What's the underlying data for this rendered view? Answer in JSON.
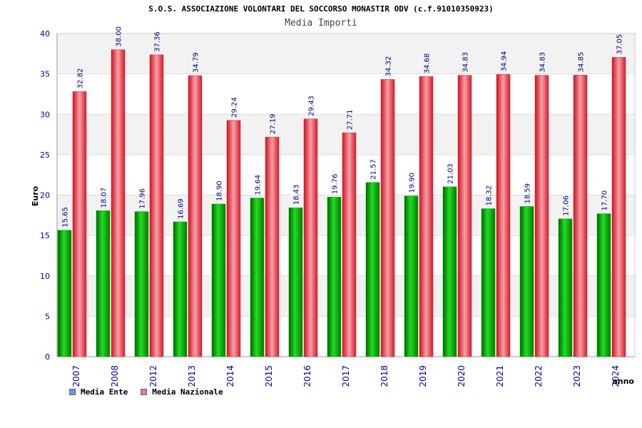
{
  "title": "S.O.S. ASSOCIAZIONE VOLONTARI DEL SOCCORSO MONASTIR ODV (c.f.91010350923)",
  "subtitle": "Media Importi",
  "colors": {
    "ente": "#00b000",
    "nazionale": "#e8202a",
    "ente_legend": "#5a9ee6",
    "nazionale_legend": "#e07aa8",
    "axis_text": "#0000aa",
    "value_text": "#000080",
    "band": "#f2f2f2"
  },
  "chart_data": {
    "type": "bar",
    "title": "Media Importi",
    "xlabel": "anno",
    "ylabel": "Euro",
    "ylim": [
      0,
      40
    ],
    "yticks": [
      0,
      5,
      10,
      15,
      20,
      25,
      30,
      35,
      40
    ],
    "categories": [
      "2007",
      "2008",
      "2012",
      "2013",
      "2014",
      "2015",
      "2016",
      "2017",
      "2018",
      "2019",
      "2020",
      "2021",
      "2022",
      "2023",
      "2024"
    ],
    "series": [
      {
        "name": "Media Ente",
        "values": [
          15.65,
          18.07,
          17.96,
          16.69,
          18.9,
          19.64,
          18.43,
          19.76,
          21.57,
          19.9,
          21.03,
          18.32,
          18.59,
          17.06,
          17.7
        ],
        "labels": [
          "15.65",
          "18.07",
          "17.96",
          "16.69",
          "18.90",
          "19.64",
          "18.43",
          "19.76",
          "21.57",
          "19.90",
          "21.03",
          "18.32",
          "18.59",
          "17.06",
          "17.70"
        ]
      },
      {
        "name": "Media Nazionale",
        "values": [
          32.82,
          38.0,
          37.36,
          34.79,
          29.24,
          27.19,
          29.43,
          27.71,
          34.32,
          34.68,
          34.83,
          34.94,
          34.83,
          34.85,
          37.05
        ],
        "labels": [
          "32.82",
          "38.00",
          "37.36",
          "34.79",
          "29.24",
          "27.19",
          "29.43",
          "27.71",
          "34.32",
          "34.68",
          "34.83",
          "34.94",
          "34.83",
          "34.85",
          "37.05"
        ]
      }
    ],
    "grid": true,
    "legend_position": "bottom-left"
  }
}
